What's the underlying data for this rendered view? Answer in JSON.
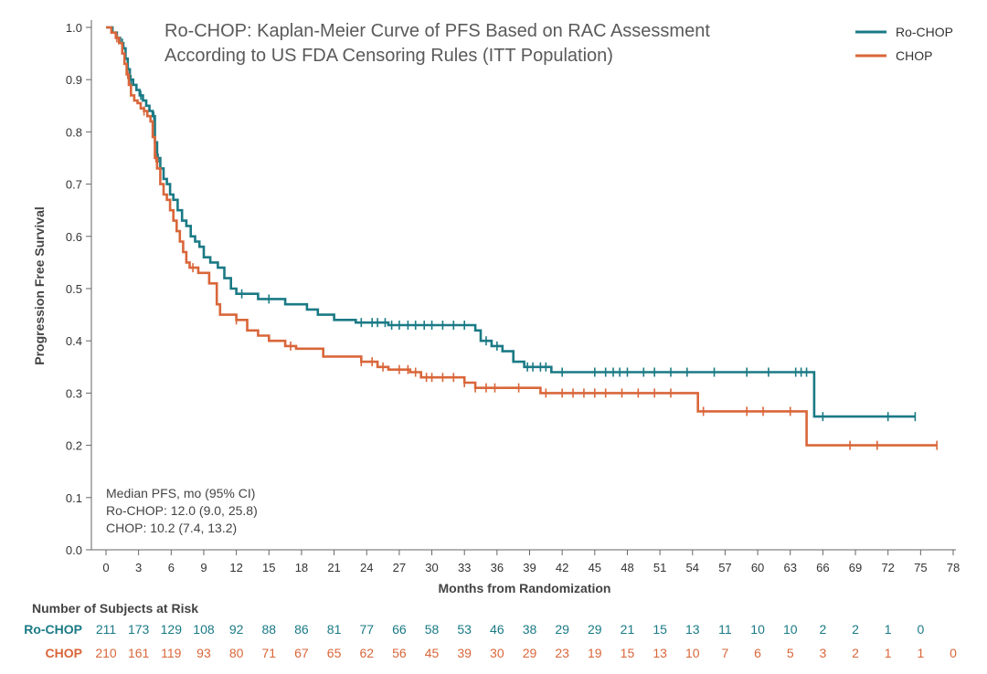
{
  "chart_data": {
    "type": "line",
    "title_lines": [
      "Ro-CHOP: Kaplan-Meier Curve of PFS Based on RAC Assessment",
      "According to US FDA Censoring Rules (ITT Population)"
    ],
    "xlabel": "Months from Randomization",
    "ylabel": "Progression Free Survival",
    "xlim": [
      0,
      78
    ],
    "ylim": [
      0,
      1.0
    ],
    "x_ticks": [
      0,
      3,
      6,
      9,
      12,
      15,
      18,
      21,
      24,
      27,
      30,
      33,
      36,
      39,
      42,
      45,
      48,
      51,
      54,
      57,
      60,
      63,
      66,
      69,
      72,
      75,
      78
    ],
    "y_ticks": [
      "0.0",
      "0.1",
      "0.2",
      "0.3",
      "0.4",
      "0.5",
      "0.6",
      "0.7",
      "0.8",
      "0.9",
      "1.0"
    ],
    "legend_position": "top-right",
    "series": [
      {
        "name": "Ro-CHOP",
        "color": "#1a7a85",
        "steps": [
          [
            0,
            1.0
          ],
          [
            0.6,
            0.99
          ],
          [
            1.0,
            0.98
          ],
          [
            1.3,
            0.97
          ],
          [
            1.6,
            0.96
          ],
          [
            1.8,
            0.94
          ],
          [
            2.0,
            0.92
          ],
          [
            2.2,
            0.9
          ],
          [
            2.5,
            0.89
          ],
          [
            2.8,
            0.88
          ],
          [
            3.1,
            0.87
          ],
          [
            3.4,
            0.86
          ],
          [
            3.7,
            0.85
          ],
          [
            4.0,
            0.84
          ],
          [
            4.3,
            0.83
          ],
          [
            4.5,
            0.78
          ],
          [
            4.7,
            0.75
          ],
          [
            5.0,
            0.73
          ],
          [
            5.3,
            0.71
          ],
          [
            5.6,
            0.7
          ],
          [
            5.9,
            0.68
          ],
          [
            6.2,
            0.67
          ],
          [
            6.6,
            0.65
          ],
          [
            7.0,
            0.63
          ],
          [
            7.4,
            0.62
          ],
          [
            7.8,
            0.6
          ],
          [
            8.2,
            0.59
          ],
          [
            8.6,
            0.58
          ],
          [
            9.0,
            0.56
          ],
          [
            9.6,
            0.55
          ],
          [
            10.3,
            0.54
          ],
          [
            10.9,
            0.52
          ],
          [
            11.5,
            0.5
          ],
          [
            12.0,
            0.49
          ],
          [
            14.0,
            0.48
          ],
          [
            16.5,
            0.47
          ],
          [
            18.5,
            0.46
          ],
          [
            19.5,
            0.45
          ],
          [
            20.0,
            0.45
          ],
          [
            20.5,
            0.45
          ],
          [
            19.8,
            0.45
          ],
          [
            21.0,
            0.44
          ],
          [
            22.5,
            0.44
          ],
          [
            23.0,
            0.435
          ],
          [
            26.0,
            0.43
          ],
          [
            34.0,
            0.42
          ],
          [
            34.5,
            0.4
          ],
          [
            35.5,
            0.39
          ],
          [
            36.5,
            0.38
          ],
          [
            37.5,
            0.36
          ],
          [
            38.5,
            0.35
          ],
          [
            41.0,
            0.34
          ],
          [
            65.0,
            0.34
          ],
          [
            65.2,
            0.255
          ],
          [
            74.5,
            0.255
          ]
        ],
        "censor_x": [
          1.5,
          2.3,
          3.2,
          4.4,
          4.8,
          12.5,
          15.0,
          23.5,
          24.5,
          25.0,
          25.7,
          26.3,
          27.0,
          27.8,
          28.5,
          29.3,
          30.0,
          31.0,
          32.0,
          33.0,
          35.0,
          36.0,
          38.8,
          39.3,
          40.0,
          40.5,
          42.0,
          45.0,
          46.0,
          46.7,
          47.3,
          48.0,
          49.5,
          50.5,
          52.0,
          53.5,
          56.0,
          59.0,
          61.0,
          63.5,
          64.0,
          64.5,
          66.0,
          72.0,
          74.5
        ]
      },
      {
        "name": "CHOP",
        "color": "#d9663a",
        "steps": [
          [
            0,
            1.0
          ],
          [
            0.5,
            0.99
          ],
          [
            0.9,
            0.98
          ],
          [
            1.2,
            0.97
          ],
          [
            1.5,
            0.95
          ],
          [
            1.7,
            0.93
          ],
          [
            1.9,
            0.91
          ],
          [
            2.1,
            0.89
          ],
          [
            2.3,
            0.87
          ],
          [
            2.6,
            0.86
          ],
          [
            2.9,
            0.855
          ],
          [
            3.2,
            0.845
          ],
          [
            3.5,
            0.84
          ],
          [
            3.8,
            0.83
          ],
          [
            4.1,
            0.82
          ],
          [
            4.3,
            0.79
          ],
          [
            4.5,
            0.75
          ],
          [
            4.7,
            0.73
          ],
          [
            5.0,
            0.7
          ],
          [
            5.3,
            0.68
          ],
          [
            5.6,
            0.67
          ],
          [
            5.9,
            0.65
          ],
          [
            6.2,
            0.63
          ],
          [
            6.5,
            0.61
          ],
          [
            6.8,
            0.59
          ],
          [
            7.1,
            0.57
          ],
          [
            7.4,
            0.55
          ],
          [
            7.7,
            0.54
          ],
          [
            8.5,
            0.53
          ],
          [
            9.5,
            0.51
          ],
          [
            10.2,
            0.47
          ],
          [
            10.5,
            0.45
          ],
          [
            12.0,
            0.44
          ],
          [
            13.0,
            0.42
          ],
          [
            14.0,
            0.41
          ],
          [
            15.0,
            0.4
          ],
          [
            16.5,
            0.39
          ],
          [
            17.5,
            0.385
          ],
          [
            20.0,
            0.37
          ],
          [
            23.5,
            0.36
          ],
          [
            25.0,
            0.35
          ],
          [
            26.0,
            0.345
          ],
          [
            28.0,
            0.34
          ],
          [
            29.0,
            0.33
          ],
          [
            33.0,
            0.32
          ],
          [
            34.0,
            0.31
          ],
          [
            40.0,
            0.3
          ],
          [
            54.5,
            0.265
          ],
          [
            64.5,
            0.2
          ],
          [
            76.5,
            0.2
          ]
        ],
        "censor_x": [
          1.0,
          2.0,
          3.5,
          4.6,
          8.0,
          12.0,
          17.0,
          23.5,
          24.5,
          25.5,
          27.0,
          27.8,
          28.5,
          29.5,
          30.0,
          31.0,
          32.0,
          33.0,
          34.0,
          35.0,
          35.8,
          38.0,
          40.5,
          42.0,
          43.0,
          44.0,
          45.0,
          46.0,
          47.5,
          49.0,
          50.5,
          52.0,
          55.0,
          59.0,
          60.5,
          63.0,
          68.5,
          71.0,
          76.5
        ]
      }
    ],
    "annotation_lines": [
      "Median PFS, mo (95% CI)",
      "Ro-CHOP: 12.0 (9.0, 25.8)",
      "CHOP: 10.2 (7.4, 13.2)"
    ],
    "risk_table": {
      "title": "Number of Subjects at Risk",
      "rows": [
        {
          "label": "Ro-CHOP",
          "color": "#1a7a85",
          "values": [
            "211",
            "173",
            "129",
            "108",
            "92",
            "88",
            "86",
            "81",
            "77",
            "66",
            "58",
            "53",
            "46",
            "38",
            "29",
            "29",
            "21",
            "15",
            "13",
            "11",
            "10",
            "10",
            "2",
            "2",
            "1",
            "0"
          ]
        },
        {
          "label": "CHOP",
          "color": "#d9663a",
          "values": [
            "210",
            "161",
            "119",
            "93",
            "80",
            "71",
            "67",
            "65",
            "62",
            "56",
            "45",
            "39",
            "30",
            "29",
            "23",
            "19",
            "15",
            "13",
            "10",
            "7",
            "6",
            "5",
            "3",
            "2",
            "1",
            "1",
            "0"
          ]
        }
      ]
    }
  }
}
